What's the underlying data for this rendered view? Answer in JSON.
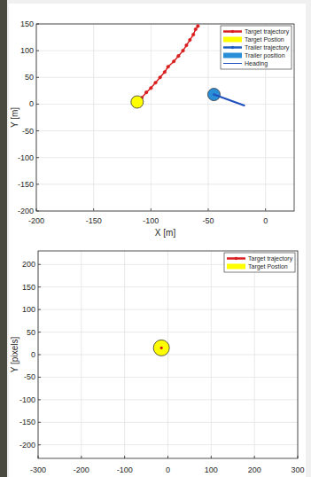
{
  "chart_data": [
    {
      "type": "scatter",
      "xlabel": "X [m]",
      "ylabel": "Y [m]",
      "xlim": [
        -200,
        25
      ],
      "xticks": [
        -200,
        -150,
        -100,
        -50,
        0
      ],
      "ylim": [
        -200,
        150
      ],
      "yticks": [
        -200,
        -150,
        -100,
        -50,
        0,
        50,
        100,
        150
      ],
      "grid": true,
      "legend": "northeast",
      "series": [
        {
          "name": "Target trajectory",
          "color": "#d81e1e",
          "marker": "dot",
          "line_style": "solid",
          "x": [
            -112,
            -108,
            -104,
            -100,
            -96,
            -92,
            -88,
            -85,
            -80,
            -76,
            -72,
            -69,
            -66,
            -63,
            -61,
            -59
          ],
          "values": [
            5,
            12,
            22,
            30,
            40,
            50,
            60,
            70,
            80,
            90,
            100,
            110,
            120,
            130,
            140,
            146
          ]
        },
        {
          "name": "Target Postion",
          "color": "#ffff00",
          "marker": "circle",
          "line_style": "none",
          "x": [
            -112
          ],
          "values": [
            4
          ]
        },
        {
          "name": "Trailer trajectory",
          "color": "#1f5fbf",
          "marker": "dot",
          "line_style": "solid",
          "x": [
            -45
          ],
          "values": [
            18
          ]
        },
        {
          "name": "Trailer position",
          "color": "#2b8fd8",
          "marker": "circle",
          "line_style": "none",
          "x": [
            -45
          ],
          "values": [
            18
          ]
        },
        {
          "name": "Heading",
          "color": "#1f4fbf",
          "marker": "none",
          "line_style": "solid",
          "x": [
            -45,
            -18
          ],
          "values": [
            18,
            -3
          ]
        }
      ]
    },
    {
      "type": "scatter",
      "ylabel": "Y [pixels]",
      "xlim": [
        -300,
        300
      ],
      "xticks": [
        -300,
        -200,
        -100,
        0,
        100,
        200,
        300
      ],
      "ylim": [
        -230,
        230
      ],
      "yticks": [
        -200,
        -150,
        -100,
        -50,
        0,
        50,
        100,
        150,
        200
      ],
      "grid": true,
      "legend": "northeast",
      "series": [
        {
          "name": "Target trajectory",
          "color": "#d81e1e",
          "marker": "dot",
          "line_style": "solid",
          "x": [
            -15
          ],
          "values": [
            15
          ]
        },
        {
          "name": "Target Postion",
          "color": "#ffff00",
          "marker": "circle",
          "line_style": "none",
          "x": [
            -15
          ],
          "values": [
            15
          ]
        }
      ]
    }
  ]
}
